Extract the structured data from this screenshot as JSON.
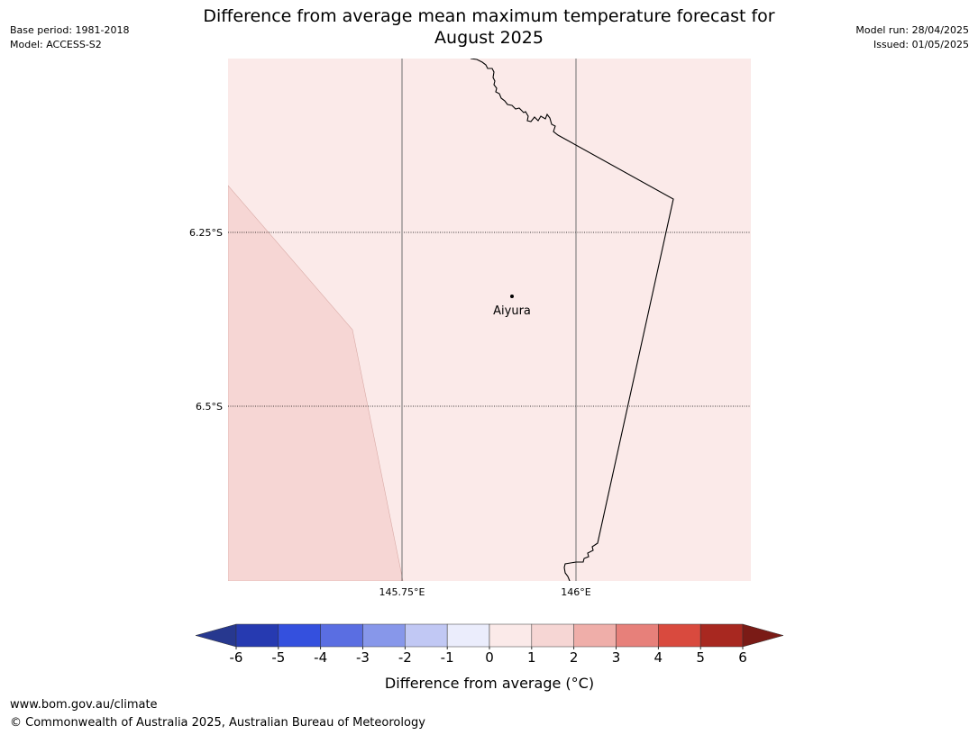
{
  "header": {
    "base_period": "Base period: 1981-2018",
    "model": "Model: ACCESS-S2",
    "model_run": "Model run: 28/04/2025",
    "issued": "Issued: 01/05/2025",
    "title_line1": "Difference from average mean maximum temperature forecast for",
    "title_line2": "August 2025"
  },
  "map": {
    "lat_labels": [
      "6.25°S",
      "6.5°S"
    ],
    "lon_labels": [
      "145.75°E",
      "146°E"
    ],
    "place_name": "Aiyura",
    "colors": {
      "background_1_to_2": "#fbeae9",
      "region_2_to_3": "#f6d6d4",
      "coastline": "#000000",
      "gridline": "#555555"
    }
  },
  "colorbar": {
    "ticks": [
      "-6",
      "-5",
      "-4",
      "-3",
      "-2",
      "-1",
      "0",
      "1",
      "2",
      "3",
      "4",
      "5",
      "6"
    ],
    "colors": [
      "#27388f",
      "#263ab1",
      "#3450de",
      "#5a6ee2",
      "#8797ea",
      "#c1c8f4",
      "#ebedfc",
      "#fbeae9",
      "#f6d6d4",
      "#efaea9",
      "#e7807a",
      "#d94a3e",
      "#a82820",
      "#7a1b16"
    ],
    "label": "Difference from average (°C)"
  },
  "footer": {
    "url": "www.bom.gov.au/climate",
    "copyright": "© Commonwealth of Australia 2025, Australian Bureau of Meteorology"
  }
}
